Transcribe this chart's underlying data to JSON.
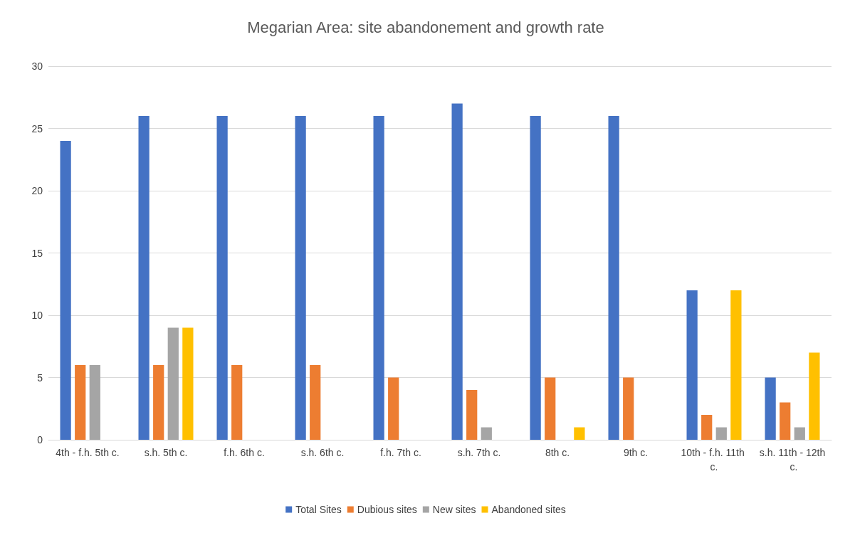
{
  "chart_data": {
    "type": "bar",
    "title": "Megarian Area: site abandonement and growth rate",
    "categories": [
      "4th - f.h. 5th c.",
      "s.h. 5th c.",
      "f.h. 6th c.",
      "s.h. 6th c.",
      "f.h. 7th c.",
      "s.h. 7th c.",
      "8th c.",
      "9th c.",
      "10th - f.h. 11th c.",
      "s.h. 11th - 12th c."
    ],
    "series": [
      {
        "name": "Total Sites",
        "color": "#4472c4",
        "values": [
          24,
          26,
          26,
          26,
          26,
          27,
          26,
          26,
          12,
          5
        ]
      },
      {
        "name": "Dubious sites",
        "color": "#ed7d31",
        "values": [
          6,
          6,
          6,
          6,
          5,
          4,
          5,
          5,
          2,
          3
        ]
      },
      {
        "name": "New sites",
        "color": "#a5a5a5",
        "values": [
          6,
          9,
          0,
          0,
          0,
          1,
          0,
          0,
          1,
          1
        ]
      },
      {
        "name": "Abandoned sites",
        "color": "#ffc000",
        "values": [
          0,
          9,
          0,
          0,
          0,
          0,
          1,
          0,
          12,
          7
        ]
      }
    ],
    "ylim": [
      0,
      30
    ],
    "yticks": [
      0,
      5,
      10,
      15,
      20,
      25,
      30
    ],
    "grid": "y",
    "legend": "bottom"
  }
}
